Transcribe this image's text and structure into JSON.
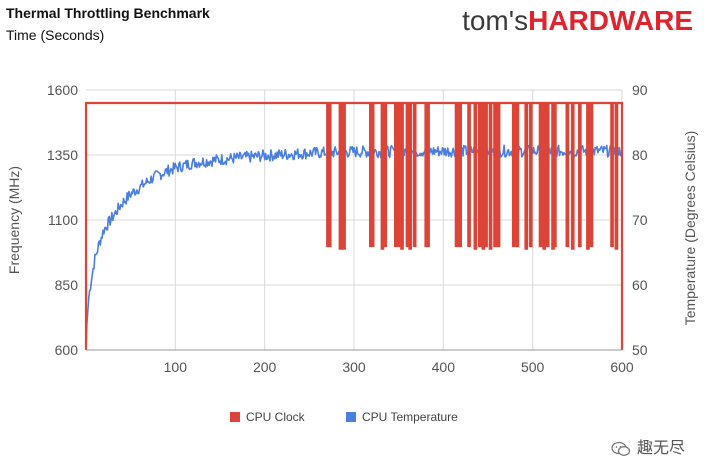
{
  "header": {
    "title": "Thermal Throttling Benchmark",
    "subtitle": "Time (Seconds)"
  },
  "logo": {
    "part1": "tom's",
    "part2": "HARDWARE"
  },
  "watermark": {
    "text": "趣无尽",
    "icon": "wechat-icon"
  },
  "colors": {
    "clock": "#db4437",
    "temperature": "#4a7fe0",
    "grid": "#d9d9d9"
  },
  "chart_data": {
    "type": "line",
    "xlabel": "",
    "ylabel": "Frequency (MHz)",
    "y2label": "Temperature (Degrees Celsius)",
    "xlim": [
      0,
      600
    ],
    "ylim": [
      600,
      1600
    ],
    "y2lim": [
      50,
      90
    ],
    "x_ticks": [
      "100",
      "200",
      "300",
      "400",
      "500",
      "600"
    ],
    "y_ticks": [
      "600",
      "850",
      "1100",
      "1350",
      "1600"
    ],
    "y2_ticks": [
      "50",
      "60",
      "70",
      "80",
      "90"
    ],
    "grid": true,
    "legend_position": "bottom",
    "series": [
      {
        "name": "CPU Clock",
        "axis": "left",
        "color": "#db4437",
        "baseline": 1550,
        "min": 600,
        "drops": [
          [
            270,
            1000
          ],
          [
            272,
            1000
          ],
          [
            284,
            990
          ],
          [
            286,
            1000
          ],
          [
            288,
            990
          ],
          [
            318,
            1000
          ],
          [
            320,
            1000
          ],
          [
            331,
            990
          ],
          [
            334,
            1000
          ],
          [
            346,
            1000
          ],
          [
            349,
            1000
          ],
          [
            353,
            990
          ],
          [
            359,
            1000
          ],
          [
            362,
            990
          ],
          [
            367,
            1000
          ],
          [
            380,
            1000
          ],
          [
            382,
            1000
          ],
          [
            414,
            1000
          ],
          [
            418,
            1000
          ],
          [
            428,
            1000
          ],
          [
            435,
            990
          ],
          [
            440,
            1000
          ],
          [
            444,
            990
          ],
          [
            447,
            1000
          ],
          [
            452,
            990
          ],
          [
            457,
            1000
          ],
          [
            461,
            1000
          ],
          [
            478,
            1000
          ],
          [
            482,
            1000
          ],
          [
            492,
            990
          ],
          [
            497,
            1000
          ],
          [
            508,
            1000
          ],
          [
            512,
            990
          ],
          [
            516,
            1000
          ],
          [
            522,
            990
          ],
          [
            524,
            1000
          ],
          [
            538,
            1000
          ],
          [
            544,
            990
          ],
          [
            552,
            1000
          ],
          [
            561,
            990
          ],
          [
            565,
            1000
          ],
          [
            588,
            1000
          ],
          [
            593,
            990
          ]
        ]
      },
      {
        "name": "CPU Temperature",
        "axis": "right",
        "color": "#4a7fe0",
        "curve": [
          [
            0,
            50
          ],
          [
            1,
            54
          ],
          [
            3,
            58
          ],
          [
            6,
            61
          ],
          [
            10,
            64
          ],
          [
            15,
            66.5
          ],
          [
            20,
            68.5
          ],
          [
            30,
            70.5
          ],
          [
            40,
            72.5
          ],
          [
            50,
            74
          ],
          [
            60,
            75
          ],
          [
            75,
            76.5
          ],
          [
            90,
            77.5
          ],
          [
            100,
            78
          ],
          [
            120,
            78.8
          ],
          [
            150,
            79.3
          ],
          [
            175,
            79.6
          ],
          [
            200,
            79.9
          ],
          [
            225,
            80.1
          ],
          [
            250,
            80.3
          ],
          [
            300,
            80.5
          ],
          [
            400,
            80.6
          ],
          [
            500,
            80.6
          ],
          [
            600,
            80.6
          ]
        ],
        "noise_amplitude": 0.9
      }
    ]
  }
}
